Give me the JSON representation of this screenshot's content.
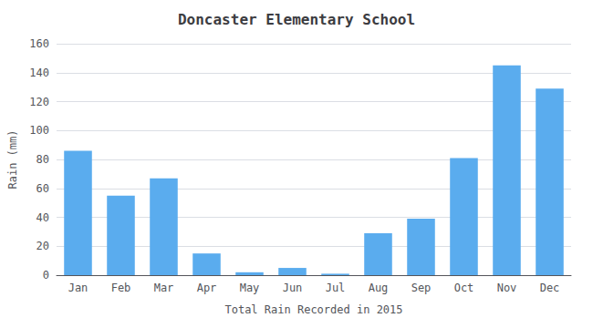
{
  "chart_data": {
    "type": "bar",
    "title": "Doncaster Elementary School",
    "xlabel": "Total Rain Recorded in 2015",
    "ylabel": "Rain (mm)",
    "categories": [
      "Jan",
      "Feb",
      "Mar",
      "Apr",
      "May",
      "Jun",
      "Jul",
      "Aug",
      "Sep",
      "Oct",
      "Nov",
      "Dec"
    ],
    "values": [
      86,
      55,
      67,
      15,
      2,
      5,
      1,
      29,
      39,
      81,
      145,
      129
    ],
    "color": "#5aacee",
    "ylim": [
      0,
      160
    ],
    "yticks": [
      0,
      20,
      40,
      60,
      80,
      100,
      120,
      140,
      160
    ],
    "grid": true
  }
}
